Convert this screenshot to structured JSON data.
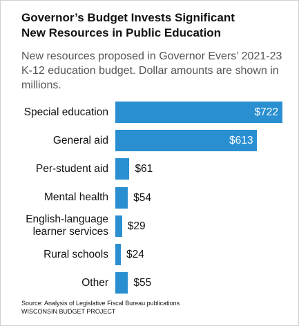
{
  "chart_data": {
    "type": "bar",
    "orientation": "horizontal",
    "title": "Governor’s Budget Invests Significant New Resources in Public Education",
    "subtitle": "New resources proposed in Governor Evers’ 2021-23 K-12 education budget. Dollar amounts are shown in millions.",
    "categories": [
      "Special education",
      "General aid",
      "Per-student aid",
      "Mental health",
      "English-language learner services",
      "Rural schools",
      "Other"
    ],
    "values": [
      722,
      613,
      61,
      54,
      29,
      24,
      55
    ],
    "value_labels": [
      "$722",
      "$613",
      "$61",
      "$54",
      "$29",
      "$24",
      "$55"
    ],
    "color": "#2a8fd1",
    "source": "Source: Analysis of Legislative Fiscal Bureau publications",
    "credit": "WISCONSIN BUDGET PROJECT"
  }
}
